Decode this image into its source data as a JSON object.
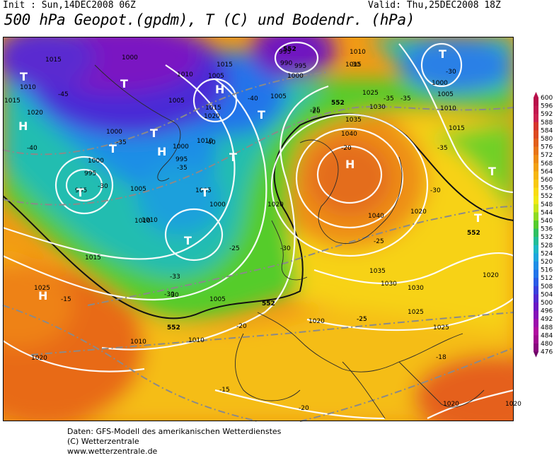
{
  "header": {
    "init": "Init : Sun,14DEC2008 06Z",
    "valid": "Valid: Thu,25DEC2008 18Z",
    "title": "500 hPa Geopot.(gpdm), T (C) und Bodendr. (hPa)"
  },
  "legend": {
    "values": [
      "600",
      "596",
      "592",
      "588",
      "584",
      "580",
      "576",
      "572",
      "568",
      "564",
      "560",
      "556",
      "552",
      "548",
      "544",
      "540",
      "536",
      "532",
      "528",
      "524",
      "520",
      "516",
      "512",
      "508",
      "504",
      "500",
      "496",
      "492",
      "488",
      "484",
      "480",
      "476"
    ],
    "colors": [
      "#b80f4a",
      "#c2184f",
      "#cc2150",
      "#d6352d",
      "#dd4a20",
      "#e25f1b",
      "#e87518",
      "#ee8b14",
      "#f2a012",
      "#f6b610",
      "#f8c910",
      "#f9dc12",
      "#f0ea14",
      "#c8e61a",
      "#8fda22",
      "#55cc2c",
      "#2fc062",
      "#22bd98",
      "#1eb8c6",
      "#1ea6dc",
      "#1f8ee6",
      "#2274ea",
      "#2a5ae6",
      "#3a40dc",
      "#5228d0",
      "#6a18c4",
      "#8412b8",
      "#9c0eac",
      "#b00ca0",
      "#a00890",
      "#88067e",
      "#6e0466"
    ]
  },
  "map_labels": {
    "isobars": [
      "1015",
      "1010",
      "1015",
      "1020",
      "1000",
      "995",
      "995",
      "1000",
      "1010",
      "1005",
      "1000",
      "1010",
      "1005",
      "1000",
      "995",
      "1005",
      "1015",
      "1020",
      "1005",
      "1000",
      "1010",
      "1015",
      "1010",
      "1005",
      "990",
      "995",
      "995",
      "1000",
      "1005",
      "1010",
      "1015",
      "1025",
      "1030",
      "1035",
      "1040",
      "1040",
      "1035",
      "1030",
      "1030",
      "1025",
      "1025",
      "1020",
      "1010",
      "1015",
      "1020",
      "1020",
      "1020",
      "1025",
      "1010",
      "1000",
      "1005",
      "1010",
      "1015",
      "1020",
      "1020",
      "1020"
    ],
    "temps": [
      "-45",
      "-40",
      "-35",
      "-30",
      "-35",
      "-40",
      "-40",
      "-35",
      "-30",
      "-30",
      "-25",
      "-25",
      "-25",
      "-30",
      "-25",
      "-20",
      "-20",
      "-15",
      "-15",
      "-20",
      "-20",
      "-25",
      "-30",
      "-35",
      "-30",
      "-35",
      "-18",
      "-30",
      "-33"
    ],
    "geopot": [
      "552",
      "552",
      "552",
      "552",
      "552"
    ],
    "centers_low": [
      "T",
      "T",
      "T",
      "T",
      "T",
      "T",
      "T",
      "T",
      "T",
      "T",
      "T",
      "T"
    ],
    "centers_high": [
      "H",
      "H",
      "H",
      "H",
      "H"
    ]
  },
  "footer": {
    "line1": "Daten: GFS-Modell des amerikanischen Wetterdienstes",
    "line2": "(C) Wetterzentrale",
    "line3": "www.wetterzentrale.de"
  }
}
